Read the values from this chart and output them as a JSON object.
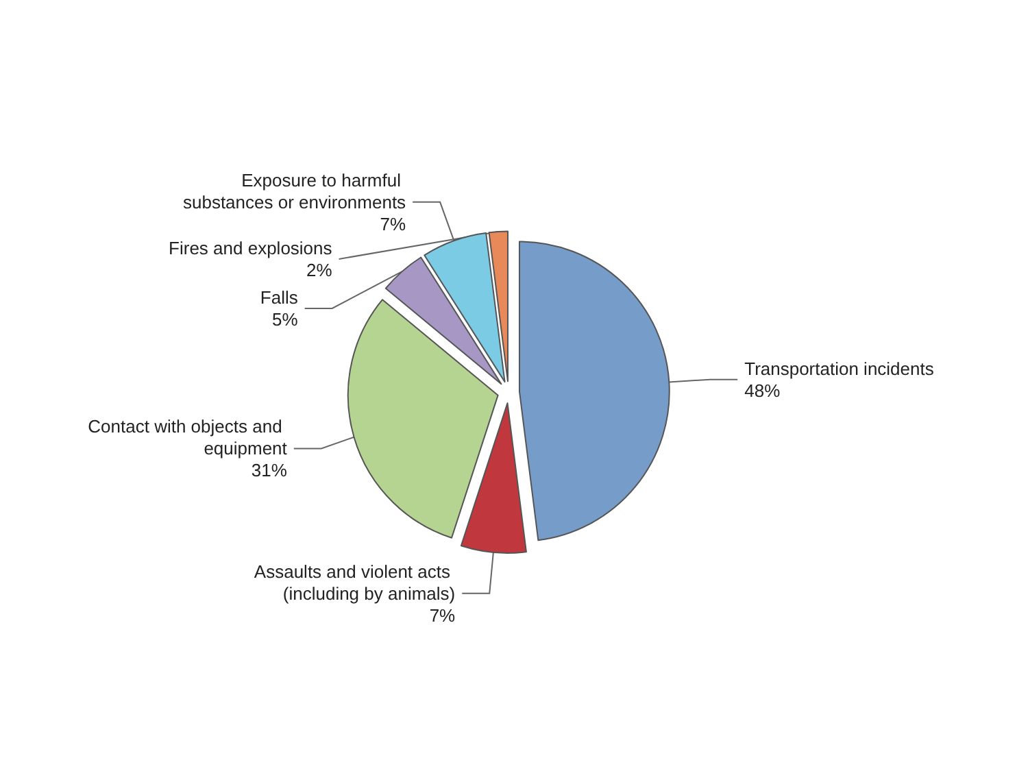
{
  "chart_data": {
    "type": "pie",
    "categories": [
      "Transportation incidents",
      "Assaults and violent acts (including by animals)",
      "Contact with objects and equipment",
      "Falls",
      "Exposure to harmful substances or environments",
      "Fires and explosions"
    ],
    "values": [
      48,
      7,
      31,
      5,
      7,
      2
    ],
    "value_labels": [
      "48%",
      "7%",
      "31%",
      "5%",
      "7%",
      "2%"
    ],
    "colors": [
      "#769dca",
      "#c0373d",
      "#b5d491",
      "#a797c5",
      "#7ccbe5",
      "#e8895a"
    ]
  }
}
